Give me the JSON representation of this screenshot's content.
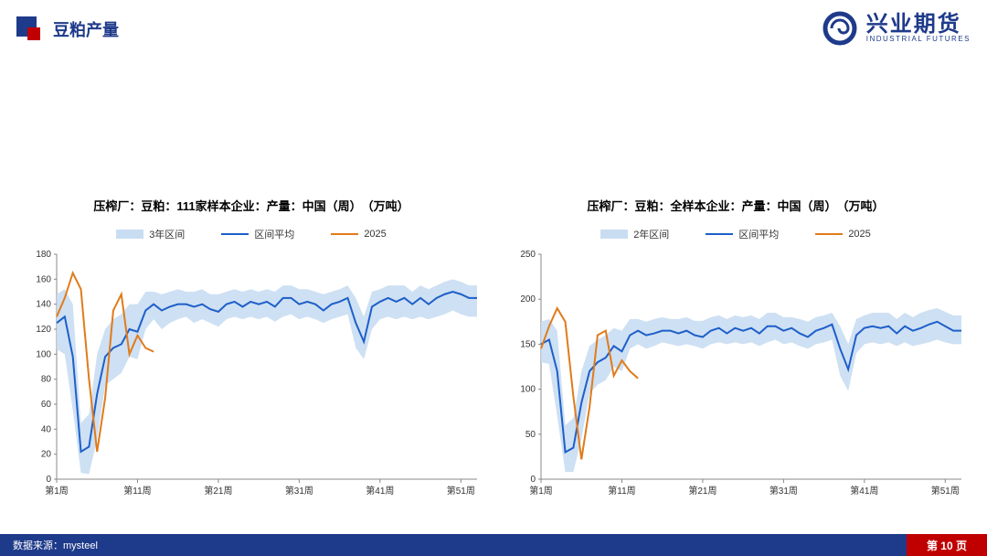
{
  "header": {
    "title": "豆粕产量",
    "title_fontsize": 18,
    "title_color": "#1e3a8a",
    "title_weight": "700",
    "square_outer": "#1e3a8a",
    "square_inner": "#c00000"
  },
  "logo": {
    "ring_color": "#1e3a8a",
    "cn": "兴业期货",
    "en": "INDUSTRIAL FUTURES",
    "cn_fontsize": 24,
    "en_fontsize": 8,
    "text_color": "#1e3a8a"
  },
  "footer": {
    "source_label": "数据来源：mysteel",
    "bg": "#1e3a8a",
    "page_label": "第 10 页",
    "page_bg": "#c00000"
  },
  "common": {
    "band_color": "#c9ddf2",
    "avg_color": "#1e5fc9",
    "year_color": "#e07b1a",
    "line_width": 2,
    "grid_color": "#d0d0d0",
    "axis_font": 10,
    "axis_color": "#333333",
    "plot_bg": "#ffffff",
    "x_ticks": [
      "第1周",
      "第11周",
      "第21周",
      "第31周",
      "第41周",
      "第51周"
    ],
    "x_tick_pos": [
      1,
      11,
      21,
      31,
      41,
      51
    ],
    "x_range": [
      1,
      53
    ]
  },
  "chart_left": {
    "title": "压榨厂：豆粕：111家样本企业：产量：中国（周）　（万吨）",
    "title_fontsize": 13,
    "legend": {
      "band": "3年区间",
      "avg": "区间平均",
      "year": "2025"
    },
    "ylim": [
      0,
      180
    ],
    "ytick_step": 20,
    "band_low": [
      104,
      100,
      55,
      5,
      4,
      32,
      75,
      80,
      85,
      98,
      96,
      120,
      128,
      120,
      125,
      128,
      130,
      125,
      128,
      125,
      122,
      128,
      130,
      128,
      130,
      128,
      130,
      126,
      130,
      132,
      128,
      130,
      128,
      125,
      128,
      130,
      132,
      105,
      96,
      120,
      128,
      130,
      128,
      130,
      128,
      130,
      128,
      130,
      132,
      135,
      132,
      130,
      130
    ],
    "band_high": [
      148,
      152,
      140,
      45,
      52,
      100,
      120,
      128,
      132,
      140,
      140,
      150,
      150,
      148,
      150,
      152,
      150,
      150,
      152,
      148,
      148,
      150,
      152,
      150,
      152,
      150,
      152,
      150,
      155,
      155,
      152,
      152,
      150,
      148,
      150,
      152,
      155,
      145,
      130,
      150,
      152,
      155,
      155,
      155,
      150,
      155,
      152,
      155,
      158,
      160,
      158,
      155,
      155
    ],
    "avg": [
      125,
      130,
      98,
      22,
      26,
      68,
      98,
      105,
      108,
      120,
      118,
      135,
      140,
      135,
      138,
      140,
      140,
      138,
      140,
      136,
      134,
      140,
      142,
      138,
      142,
      140,
      142,
      138,
      145,
      145,
      140,
      142,
      140,
      135,
      140,
      142,
      145,
      125,
      110,
      138,
      142,
      145,
      142,
      145,
      140,
      145,
      140,
      145,
      148,
      150,
      148,
      145,
      145
    ],
    "year": [
      130,
      145,
      165,
      152,
      80,
      22,
      65,
      135,
      148,
      100,
      115,
      105,
      102
    ]
  },
  "chart_right": {
    "title": "压榨厂：豆粕：全样本企业：产量：中国（周）　（万吨）",
    "title_fontsize": 13,
    "legend": {
      "band": "2年区间",
      "avg": "区间平均",
      "year": "2025"
    },
    "ylim": [
      0,
      250
    ],
    "ytick_step": 50,
    "band_low": [
      130,
      128,
      70,
      8,
      8,
      45,
      95,
      105,
      110,
      125,
      120,
      145,
      150,
      145,
      148,
      152,
      150,
      148,
      150,
      148,
      145,
      150,
      152,
      150,
      152,
      150,
      152,
      148,
      152,
      155,
      150,
      152,
      148,
      145,
      150,
      152,
      155,
      115,
      98,
      140,
      150,
      152,
      150,
      152,
      148,
      152,
      148,
      150,
      152,
      155,
      152,
      150,
      150
    ],
    "band_high": [
      175,
      178,
      165,
      60,
      68,
      120,
      148,
      155,
      160,
      168,
      165,
      178,
      178,
      175,
      178,
      180,
      178,
      178,
      180,
      176,
      176,
      180,
      182,
      178,
      182,
      180,
      182,
      178,
      185,
      185,
      180,
      180,
      178,
      175,
      180,
      182,
      185,
      170,
      150,
      178,
      182,
      185,
      185,
      185,
      178,
      185,
      180,
      185,
      188,
      190,
      186,
      182,
      182
    ],
    "avg": [
      150,
      155,
      120,
      30,
      35,
      85,
      120,
      130,
      135,
      148,
      142,
      160,
      165,
      160,
      162,
      165,
      165,
      162,
      165,
      160,
      158,
      165,
      168,
      162,
      168,
      165,
      168,
      162,
      170,
      170,
      165,
      168,
      162,
      158,
      165,
      168,
      172,
      145,
      122,
      160,
      168,
      170,
      168,
      170,
      162,
      170,
      165,
      168,
      172,
      175,
      170,
      165,
      165
    ],
    "year": [
      145,
      170,
      190,
      175,
      92,
      22,
      80,
      160,
      165,
      115,
      132,
      120,
      112
    ]
  }
}
